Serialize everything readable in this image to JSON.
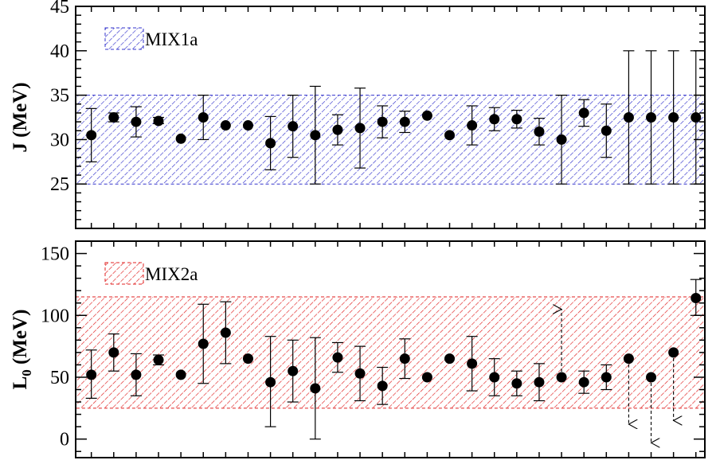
{
  "chart_data": [
    {
      "type": "scatter",
      "title": "",
      "xlabel": "",
      "ylabel": "J (MeV)",
      "ylim": [
        20,
        45
      ],
      "yticks": [
        25,
        30,
        35,
        40,
        45
      ],
      "yticks_minor_step": 1,
      "grid": false,
      "legend": {
        "label": "MIX1a",
        "placement": "top-left",
        "color": "#3333cc"
      },
      "band": {
        "low": 25,
        "high": 35,
        "color": "#3333cc"
      },
      "series": [
        {
          "marker_color": "#000000",
          "points": [
            {
              "x": 1,
              "y": 30.5,
              "lo": 27.5,
              "hi": 33.5
            },
            {
              "x": 2,
              "y": 32.5,
              "lo": 32.0,
              "hi": 33.0
            },
            {
              "x": 3,
              "y": 32.0,
              "lo": 30.3,
              "hi": 33.7
            },
            {
              "x": 4,
              "y": 32.1,
              "lo": 31.8,
              "hi": 32.5
            },
            {
              "x": 5,
              "y": 30.1
            },
            {
              "x": 6,
              "y": 32.5,
              "lo": 30.0,
              "hi": 35.0
            },
            {
              "x": 7,
              "y": 31.6
            },
            {
              "x": 8,
              "y": 31.6
            },
            {
              "x": 9,
              "y": 29.6,
              "lo": 26.6,
              "hi": 32.6
            },
            {
              "x": 10,
              "y": 31.5,
              "lo": 28.0,
              "hi": 35.0
            },
            {
              "x": 11,
              "y": 30.5,
              "lo": 25.0,
              "hi": 36.0
            },
            {
              "x": 12,
              "y": 31.1,
              "lo": 29.4,
              "hi": 32.8
            },
            {
              "x": 13,
              "y": 31.3,
              "lo": 26.8,
              "hi": 35.8
            },
            {
              "x": 14,
              "y": 32.0,
              "lo": 30.2,
              "hi": 33.8
            },
            {
              "x": 15,
              "y": 32.0,
              "lo": 30.8,
              "hi": 33.2
            },
            {
              "x": 16,
              "y": 32.7
            },
            {
              "x": 17,
              "y": 30.5
            },
            {
              "x": 18,
              "y": 31.6,
              "lo": 29.4,
              "hi": 33.8
            },
            {
              "x": 19,
              "y": 32.3,
              "lo": 31.0,
              "hi": 33.6
            },
            {
              "x": 20,
              "y": 32.3,
              "lo": 31.3,
              "hi": 33.3
            },
            {
              "x": 21,
              "y": 30.9,
              "lo": 29.4,
              "hi": 32.4
            },
            {
              "x": 22,
              "y": 30.0,
              "lo": 25.0,
              "hi": 35.0
            },
            {
              "x": 23,
              "y": 33.0,
              "lo": 31.5,
              "hi": 34.5
            },
            {
              "x": 24,
              "y": 31.0,
              "lo": 28.0,
              "hi": 34.0
            },
            {
              "x": 25,
              "y": 32.5,
              "lo": 25.0,
              "hi": 40.0
            },
            {
              "x": 26,
              "y": 32.5,
              "lo": 25.0,
              "hi": 40.0
            },
            {
              "x": 27,
              "y": 32.5,
              "lo": 25.0,
              "hi": 40.0
            },
            {
              "x": 28,
              "y": 32.5,
              "lo": 25.0,
              "hi": 40.0
            }
          ]
        }
      ]
    },
    {
      "type": "scatter",
      "title": "",
      "xlabel": "",
      "ylabel_main": "L",
      "ylabel_sub": "0",
      "ylabel_unit": " (MeV)",
      "ylim": [
        -15,
        160
      ],
      "yticks": [
        0,
        50,
        100,
        150
      ],
      "yticks_minor_step": 10,
      "grid": false,
      "legend": {
        "label": "MIX2a",
        "placement": "top-left",
        "color": "#e02020"
      },
      "band": {
        "low": 25,
        "high": 115,
        "color": "#e02020"
      },
      "series": [
        {
          "marker_color": "#000000",
          "points": [
            {
              "x": 1,
              "y": 52,
              "lo": 33,
              "hi": 72
            },
            {
              "x": 2,
              "y": 70,
              "lo": 55,
              "hi": 85
            },
            {
              "x": 3,
              "y": 52,
              "lo": 35,
              "hi": 69
            },
            {
              "x": 4,
              "y": 64,
              "lo": 60,
              "hi": 68
            },
            {
              "x": 5,
              "y": 52
            },
            {
              "x": 6,
              "y": 77,
              "lo": 45,
              "hi": 109
            },
            {
              "x": 7,
              "y": 86,
              "lo": 61,
              "hi": 111
            },
            {
              "x": 8,
              "y": 65
            },
            {
              "x": 9,
              "y": 46,
              "lo": 10,
              "hi": 83
            },
            {
              "x": 10,
              "y": 55,
              "lo": 30,
              "hi": 80
            },
            {
              "x": 11,
              "y": 41,
              "lo": 0,
              "hi": 82
            },
            {
              "x": 12,
              "y": 66,
              "lo": 54,
              "hi": 78
            },
            {
              "x": 13,
              "y": 53,
              "lo": 31,
              "hi": 75
            },
            {
              "x": 14,
              "y": 43,
              "lo": 28,
              "hi": 58
            },
            {
              "x": 15,
              "y": 65,
              "lo": 49,
              "hi": 81
            },
            {
              "x": 16,
              "y": 50
            },
            {
              "x": 17,
              "y": 65
            },
            {
              "x": 18,
              "y": 61,
              "lo": 39,
              "hi": 83
            },
            {
              "x": 19,
              "y": 50,
              "lo": 35,
              "hi": 65
            },
            {
              "x": 20,
              "y": 45,
              "lo": 35,
              "hi": 55
            },
            {
              "x": 21,
              "y": 46,
              "lo": 31,
              "hi": 61
            },
            {
              "x": 22,
              "y": 50,
              "arrow_to": 105
            },
            {
              "x": 23,
              "y": 46,
              "lo": 37,
              "hi": 55
            },
            {
              "x": 24,
              "y": 50,
              "lo": 40,
              "hi": 60
            },
            {
              "x": 25,
              "y": 65,
              "arrow_to": 12
            },
            {
              "x": 26,
              "y": 50,
              "arrow_to": -3
            },
            {
              "x": 27,
              "y": 70,
              "arrow_to": 15
            },
            {
              "x": 28,
              "y": 114,
              "lo": 100,
              "hi": 129
            }
          ]
        }
      ]
    }
  ]
}
